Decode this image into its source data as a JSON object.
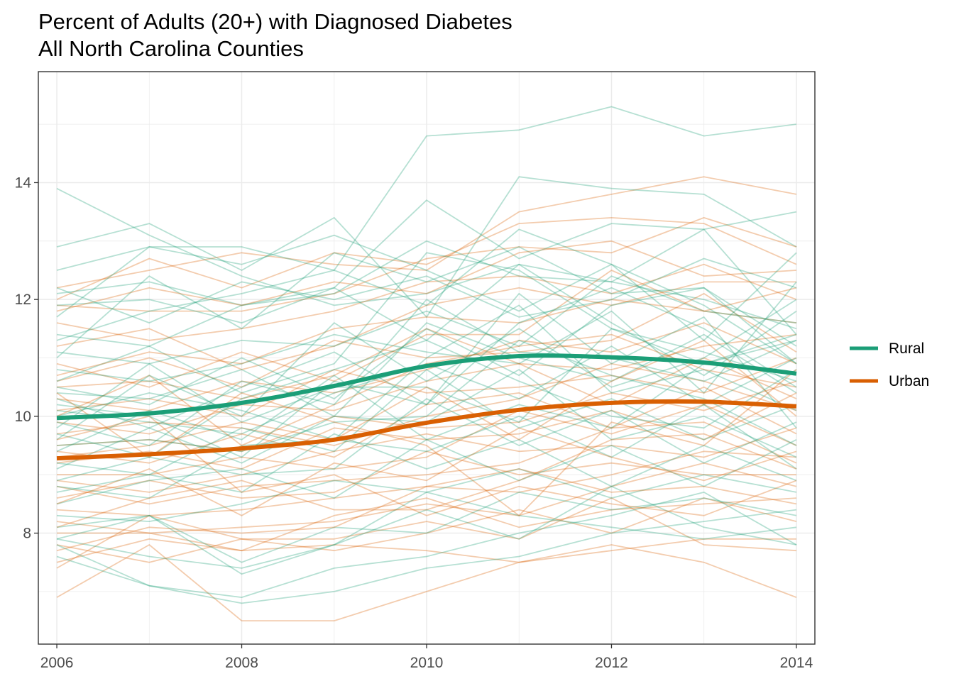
{
  "chart_data": {
    "type": "line",
    "title": "Percent of Adults (20+) with Diagnosed Diabetes",
    "subtitle": "All North Carolina Counties",
    "xlabel": "",
    "ylabel": "",
    "xlim": [
      2005.8,
      2014.2
    ],
    "ylim": [
      6.1,
      15.9
    ],
    "x_ticks": [
      2006,
      2008,
      2010,
      2012,
      2014
    ],
    "y_ticks": [
      8,
      10,
      12,
      14
    ],
    "x_tick_labels": [
      "2006",
      "2008",
      "2010",
      "2012",
      "2014"
    ],
    "y_tick_labels": [
      "8",
      "10",
      "12",
      "14"
    ],
    "grid": true,
    "legend_position": "right",
    "colors": {
      "Rural": "#1b9e77",
      "Urban": "#d95f02",
      "grid": "#ebebeb",
      "panel_border": "#333333"
    },
    "x": [
      2006,
      2007,
      2008,
      2009,
      2010,
      2011,
      2012,
      2013,
      2014
    ],
    "series": [
      {
        "name": "Rural",
        "values": [
          9.97,
          10.05,
          10.23,
          10.52,
          10.86,
          11.03,
          11.01,
          10.92,
          10.73
        ]
      },
      {
        "name": "Urban",
        "values": [
          9.28,
          9.35,
          9.45,
          9.6,
          9.89,
          10.11,
          10.23,
          10.25,
          10.17
        ]
      }
    ],
    "county_lines": {
      "Rural": [
        [
          13.9,
          13.1,
          12.4,
          11.9,
          12.1,
          12.6,
          12.3,
          12.0,
          11.5
        ],
        [
          12.9,
          13.3,
          12.5,
          13.4,
          11.7,
          14.1,
          13.9,
          13.8,
          12.9
        ],
        [
          12.5,
          12.9,
          12.9,
          12.5,
          14.8,
          14.9,
          15.3,
          14.8,
          15.0
        ],
        [
          12.1,
          12.3,
          11.9,
          12.1,
          13.0,
          12.4,
          12.3,
          13.2,
          11.4
        ],
        [
          11.9,
          12.0,
          11.6,
          12.2,
          13.7,
          12.7,
          13.3,
          13.2,
          13.5
        ],
        [
          11.7,
          12.9,
          12.6,
          13.1,
          12.5,
          11.8,
          12.6,
          11.9,
          10.9
        ],
        [
          11.4,
          11.2,
          11.9,
          12.2,
          11.3,
          12.6,
          11.6,
          10.7,
          11.8
        ],
        [
          11.1,
          10.9,
          11.3,
          11.2,
          11.8,
          11.2,
          12.4,
          11.8,
          11.6
        ],
        [
          11.0,
          12.4,
          11.5,
          12.8,
          12.3,
          12.9,
          12.1,
          12.2,
          11.2
        ],
        [
          10.8,
          10.6,
          10.9,
          11.4,
          11.1,
          10.9,
          11.8,
          10.4,
          12.3
        ],
        [
          10.6,
          11.2,
          10.4,
          10.9,
          12.8,
          12.5,
          11.5,
          10.9,
          11.3
        ],
        [
          10.4,
          10.3,
          10.8,
          10.0,
          11.6,
          11.0,
          10.6,
          11.4,
          10.4
        ],
        [
          10.3,
          9.8,
          10.5,
          11.1,
          10.2,
          12.1,
          10.9,
          11.7,
          9.8
        ],
        [
          10.1,
          9.9,
          9.7,
          10.4,
          10.9,
          10.3,
          11.2,
          10.2,
          11.0
        ],
        [
          10.0,
          10.4,
          10.1,
          9.6,
          11.0,
          11.9,
          10.4,
          10.8,
          10.1
        ],
        [
          9.8,
          10.9,
          9.9,
          10.5,
          10.5,
          9.9,
          11.5,
          11.1,
          10.6
        ],
        [
          9.7,
          9.3,
          10.3,
          10.8,
          11.3,
          10.6,
          10.0,
          9.8,
          10.8
        ],
        [
          9.5,
          9.6,
          9.4,
          9.9,
          10.0,
          11.3,
          10.7,
          10.3,
          9.5
        ],
        [
          9.4,
          10.1,
          9.6,
          10.7,
          9.6,
          10.2,
          9.8,
          10.9,
          11.4
        ],
        [
          9.2,
          9.0,
          9.8,
          9.4,
          10.8,
          9.8,
          10.3,
          9.6,
          10.2
        ],
        [
          9.1,
          9.8,
          9.2,
          10.0,
          9.9,
          10.8,
          9.6,
          10.0,
          9.3
        ],
        [
          8.9,
          9.3,
          9.0,
          9.1,
          10.3,
          9.5,
          10.1,
          9.2,
          9.9
        ],
        [
          8.8,
          8.6,
          9.5,
          9.6,
          9.4,
          10.0,
          9.3,
          10.2,
          9.1
        ],
        [
          8.7,
          9.0,
          8.7,
          9.7,
          9.1,
          9.6,
          8.8,
          9.5,
          8.9
        ],
        [
          8.5,
          8.9,
          9.1,
          8.6,
          9.6,
          8.9,
          9.5,
          8.8,
          9.6
        ],
        [
          8.3,
          8.2,
          8.5,
          8.9,
          8.7,
          9.1,
          8.6,
          9.0,
          8.7
        ],
        [
          8.1,
          8.3,
          7.5,
          8.1,
          8.0,
          8.7,
          8.4,
          8.6,
          8.3
        ],
        [
          7.9,
          7.6,
          7.4,
          7.8,
          8.7,
          8.3,
          8.1,
          7.9,
          8.1
        ],
        [
          7.8,
          7.1,
          6.9,
          7.4,
          7.6,
          8.0,
          8.3,
          8.7,
          7.8
        ],
        [
          7.6,
          7.1,
          6.8,
          7.0,
          7.4,
          7.6,
          8.0,
          8.2,
          8.4
        ],
        [
          7.9,
          8.3,
          7.3,
          7.8,
          8.4,
          7.9,
          8.8,
          8.1,
          7.8
        ],
        [
          12.2,
          11.6,
          12.3,
          12.0,
          12.4,
          11.7,
          12.0,
          12.7,
          12.2
        ],
        [
          11.3,
          11.8,
          12.1,
          12.5,
          11.9,
          13.2,
          12.6,
          11.3,
          12.8
        ],
        [
          10.5,
          10.2,
          11.0,
          10.3,
          11.5,
          10.7,
          11.9,
          12.2,
          10.9
        ],
        [
          9.6,
          10.7,
          10.0,
          11.6,
          10.6,
          11.5,
          10.5,
          11.0,
          12.0
        ],
        [
          9.9,
          9.5,
          10.6,
          10.2,
          12.0,
          11.1,
          11.0,
          10.6,
          11.3
        ],
        [
          10.2,
          10.0,
          9.3,
          10.6,
          10.2,
          11.6,
          12.2,
          11.5,
          10.5
        ]
      ],
      "Urban": [
        [
          12.2,
          12.5,
          12.8,
          12.6,
          12.5,
          13.5,
          13.8,
          14.1,
          13.8
        ],
        [
          12.0,
          12.7,
          12.2,
          12.8,
          12.6,
          13.3,
          13.4,
          13.3,
          12.6
        ],
        [
          11.9,
          11.8,
          11.8,
          12.1,
          12.7,
          12.9,
          12.8,
          13.4,
          12.9
        ],
        [
          11.6,
          11.3,
          11.5,
          11.8,
          12.3,
          12.4,
          12.1,
          12.6,
          12.0
        ],
        [
          11.2,
          11.5,
          10.8,
          11.2,
          11.9,
          12.2,
          11.9,
          12.3,
          12.3
        ],
        [
          10.9,
          10.5,
          11.1,
          10.6,
          11.4,
          11.4,
          12.5,
          11.8,
          11.6
        ],
        [
          10.6,
          11.0,
          10.5,
          11.3,
          11.0,
          11.1,
          11.3,
          12.1,
          11.1
        ],
        [
          10.5,
          10.6,
          10.3,
          10.7,
          11.5,
          10.9,
          10.8,
          11.2,
          11.4
        ],
        [
          10.3,
          10.1,
          10.6,
          10.4,
          10.8,
          11.3,
          11.1,
          11.6,
          10.9
        ],
        [
          10.1,
          10.3,
          10.0,
          10.8,
          10.4,
          10.5,
          10.7,
          10.4,
          11.0
        ],
        [
          9.9,
          9.7,
          10.2,
          10.1,
          10.6,
          10.9,
          10.2,
          11.0,
          10.3
        ],
        [
          9.7,
          9.9,
          9.8,
          9.5,
          10.0,
          10.3,
          10.9,
          10.6,
          10.1
        ],
        [
          9.5,
          9.6,
          9.4,
          10.0,
          9.8,
          9.9,
          10.4,
          10.1,
          10.6
        ],
        [
          9.4,
          9.2,
          9.7,
          9.3,
          10.2,
          10.4,
          9.8,
          10.5,
          9.7
        ],
        [
          9.2,
          9.4,
          9.1,
          9.8,
          9.6,
          9.7,
          10.1,
          9.6,
          10.4
        ],
        [
          9.0,
          9.0,
          9.3,
          9.1,
          9.3,
          10.1,
          9.7,
          10.2,
          9.5
        ],
        [
          8.9,
          8.7,
          9.0,
          9.4,
          9.7,
          9.4,
          9.5,
          9.3,
          9.8
        ],
        [
          8.8,
          8.5,
          8.8,
          8.9,
          9.0,
          9.2,
          9.8,
          9.9,
          9.2
        ],
        [
          8.6,
          8.9,
          8.6,
          8.7,
          9.4,
          9.0,
          9.2,
          9.0,
          9.0
        ],
        [
          8.4,
          8.3,
          8.4,
          8.6,
          8.8,
          8.7,
          9.0,
          9.4,
          9.3
        ],
        [
          8.2,
          8.0,
          8.1,
          8.2,
          8.5,
          8.3,
          8.8,
          9.2,
          8.8
        ],
        [
          8.0,
          8.0,
          7.7,
          8.3,
          8.6,
          8.1,
          8.4,
          8.5,
          8.6
        ],
        [
          7.8,
          7.5,
          7.9,
          7.7,
          8.0,
          8.4,
          8.0,
          8.6,
          8.2
        ],
        [
          7.5,
          7.9,
          7.7,
          7.8,
          7.7,
          7.5,
          7.8,
          7.5,
          6.9
        ],
        [
          7.4,
          8.3,
          7.9,
          7.9,
          8.2,
          7.9,
          8.6,
          7.8,
          7.7
        ],
        [
          6.9,
          7.8,
          6.5,
          6.5,
          7.0,
          7.5,
          7.7,
          7.9,
          7.9
        ],
        [
          11.8,
          12.2,
          11.9,
          12.3,
          12.1,
          12.8,
          13.0,
          12.4,
          12.5
        ],
        [
          10.7,
          11.1,
          10.9,
          11.5,
          11.7,
          11.6,
          12.0,
          11.8,
          12.2
        ],
        [
          10.0,
          10.7,
          9.5,
          10.2,
          10.9,
          11.2,
          11.4,
          10.8,
          10.5
        ],
        [
          9.3,
          9.5,
          9.9,
          9.6,
          10.5,
          9.6,
          10.6,
          11.3,
          10.0
        ],
        [
          8.5,
          9.1,
          8.3,
          9.2,
          8.9,
          9.8,
          9.3,
          8.9,
          9.4
        ],
        [
          8.1,
          8.6,
          8.9,
          8.4,
          8.4,
          8.9,
          9.6,
          9.7,
          9.1
        ],
        [
          7.7,
          8.1,
          8.0,
          8.1,
          8.8,
          9.1,
          8.7,
          8.8,
          8.5
        ],
        [
          10.4,
          9.3,
          10.4,
          9.9,
          9.5,
          8.3,
          9.9,
          9.5,
          10.8
        ],
        [
          9.6,
          10.0,
          8.7,
          9.0,
          8.3,
          8.8,
          8.5,
          8.3,
          8.9
        ]
      ]
    }
  }
}
